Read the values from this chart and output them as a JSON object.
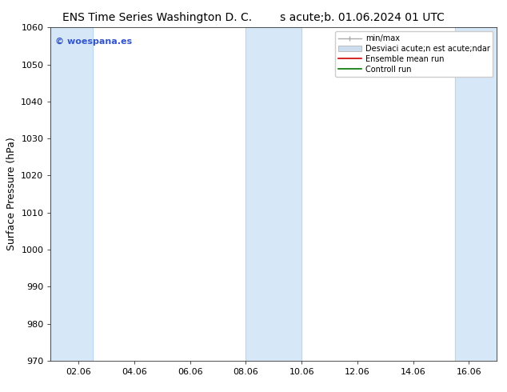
{
  "title_left": "ENS Time Series Washington D. C.",
  "title_right": "s acute;b. 01.06.2024 01 UTC",
  "ylabel": "Surface Pressure (hPa)",
  "ylim": [
    970,
    1060
  ],
  "yticks": [
    970,
    980,
    990,
    1000,
    1010,
    1020,
    1030,
    1040,
    1050,
    1060
  ],
  "xlim": [
    0,
    16
  ],
  "xtick_labels": [
    "02.06",
    "04.06",
    "06.06",
    "08.06",
    "10.06",
    "12.06",
    "14.06",
    "16.06"
  ],
  "xtick_positions": [
    1,
    3,
    5,
    7,
    9,
    11,
    13,
    15
  ],
  "watermark": "© woespana.es",
  "watermark_color": "#3355cc",
  "bg_color": "#ffffff",
  "plot_bg_color": "#ffffff",
  "shaded_bands": [
    {
      "x_start": 0.0,
      "x_end": 1.5,
      "color": "#d6e8f8"
    },
    {
      "x_start": 7.0,
      "x_end": 9.0,
      "color": "#d6e8f8"
    },
    {
      "x_start": 14.5,
      "x_end": 16.0,
      "color": "#d6e8f8"
    }
  ],
  "band_border_color": "#aaccee",
  "legend_entries": [
    {
      "label": "min/max",
      "color": "#aaaaaa",
      "type": "errbar"
    },
    {
      "label": "Desviaci acute;n est acute;ndar",
      "color": "#ccddef",
      "type": "bar"
    },
    {
      "label": "Ensemble mean run",
      "color": "#cc0000",
      "type": "line"
    },
    {
      "label": "Controll run",
      "color": "#007700",
      "type": "line"
    }
  ],
  "title_fontsize": 10,
  "tick_fontsize": 8,
  "label_fontsize": 9,
  "legend_fontsize": 7
}
